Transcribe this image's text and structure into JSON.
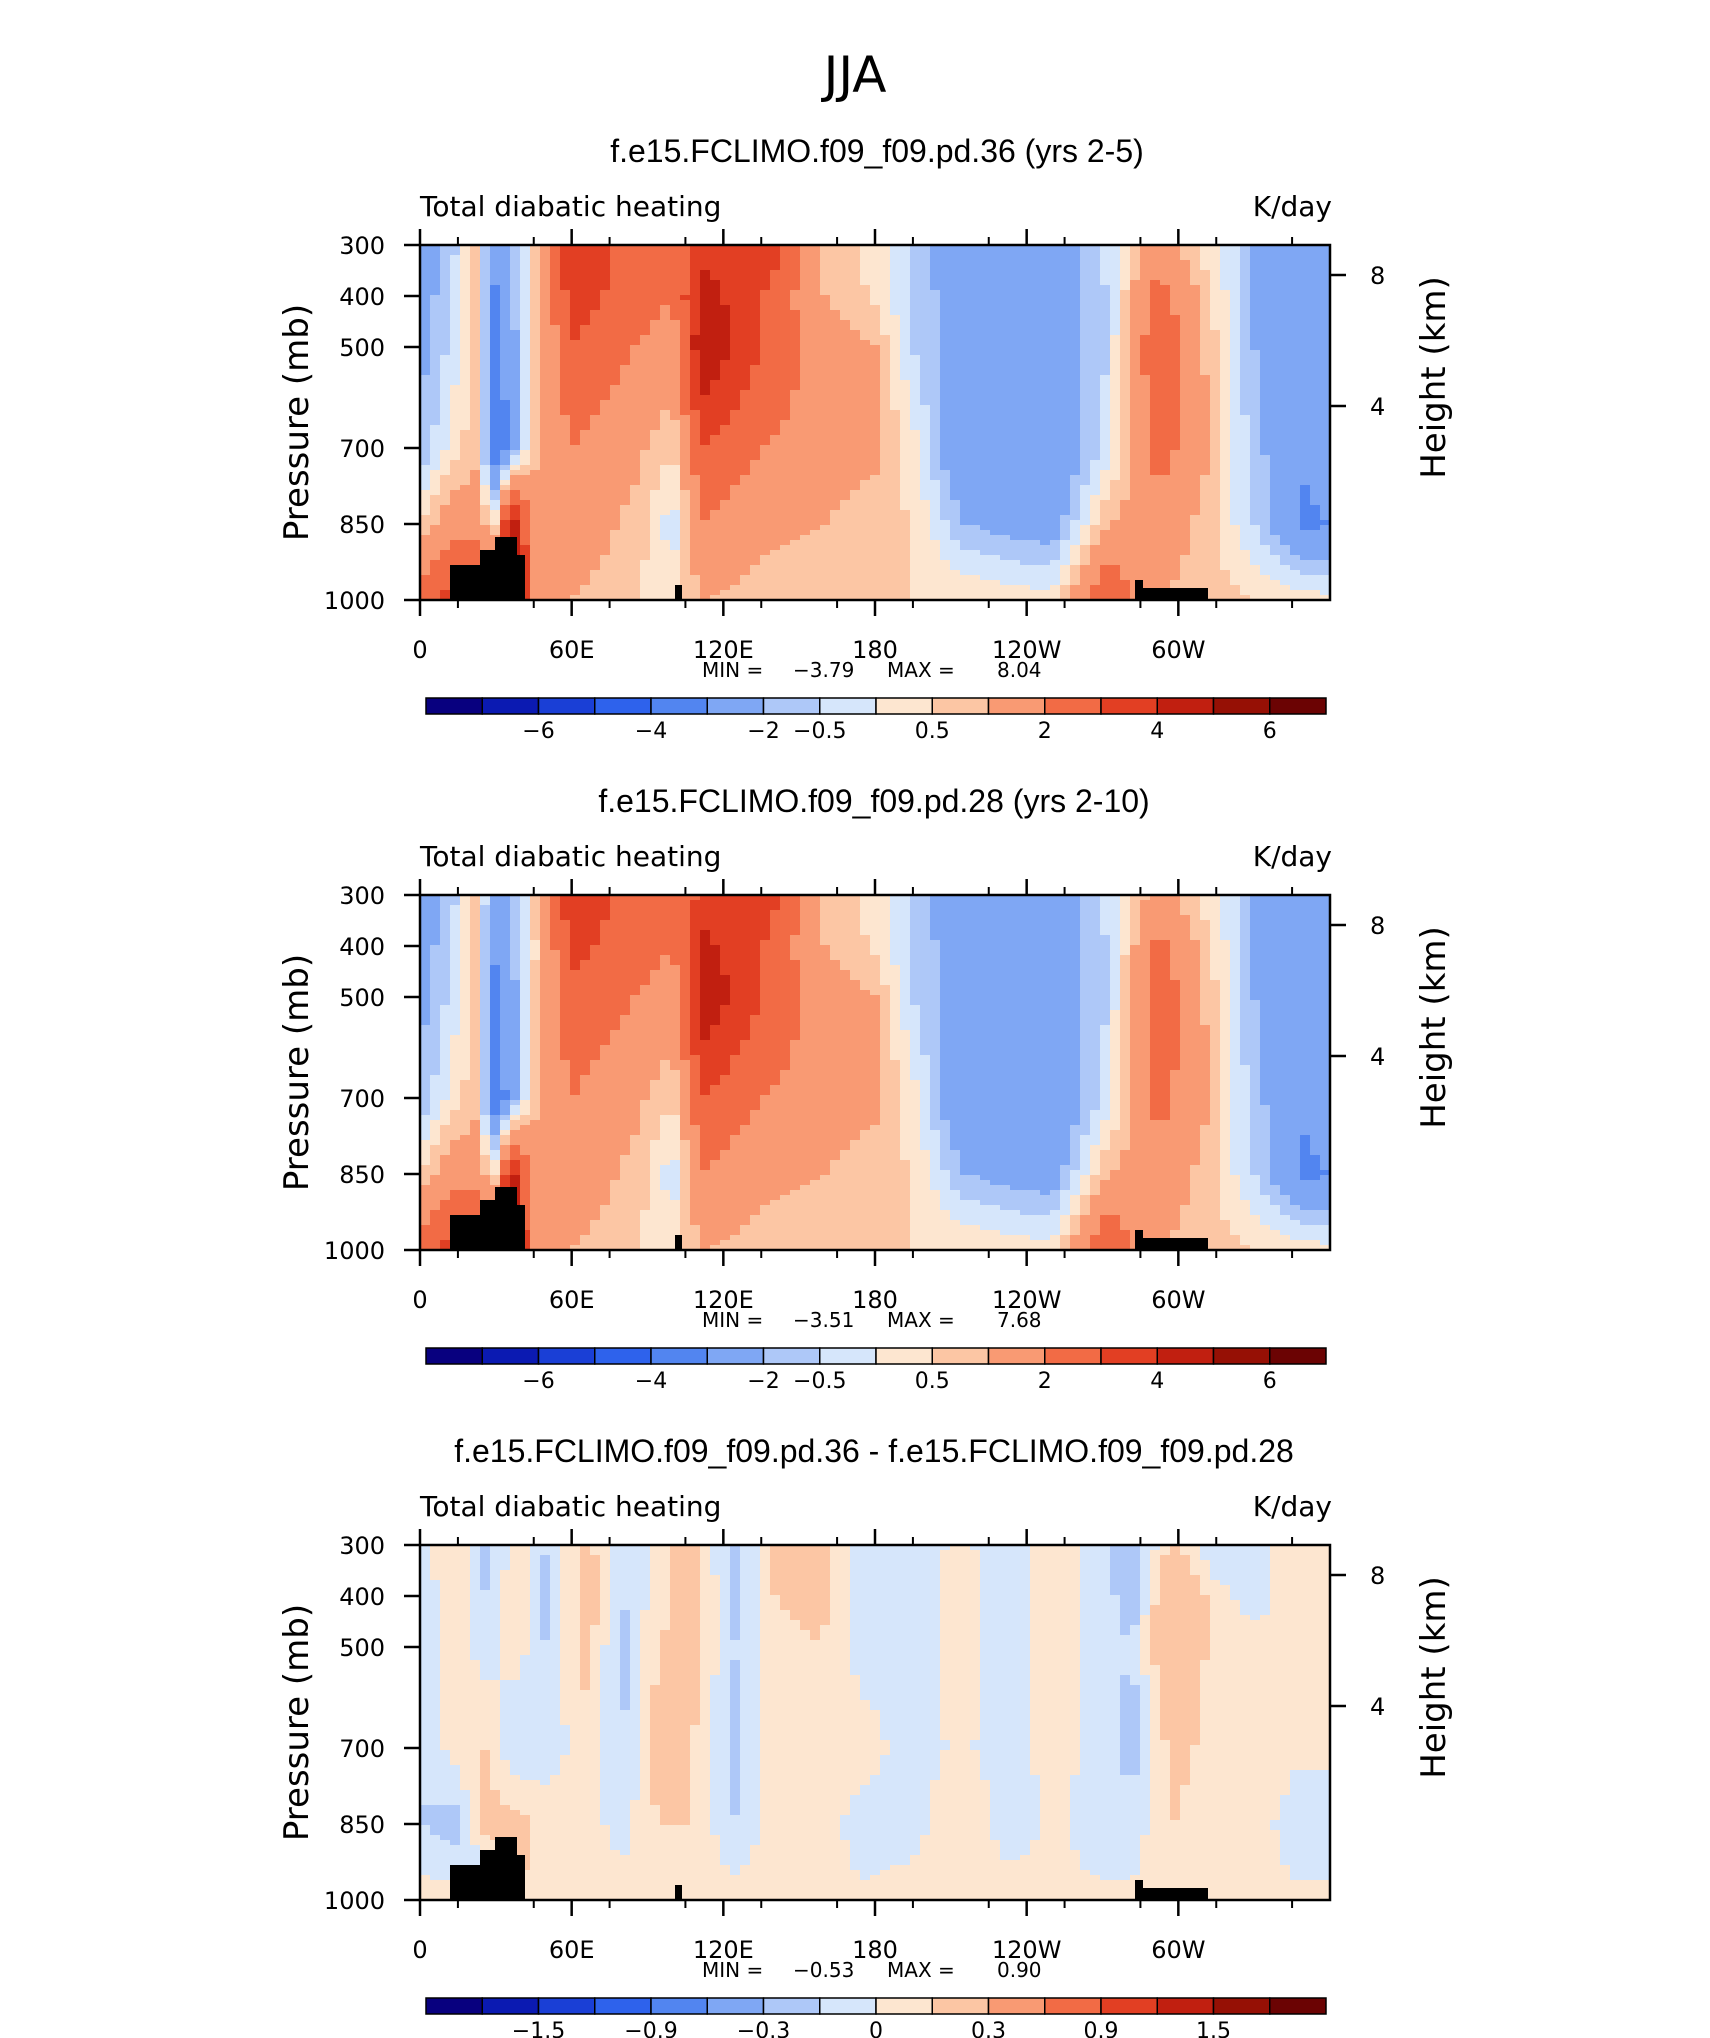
{
  "figure_title": "JJA",
  "colors": {
    "scale": [
      "#08007f",
      "#0b1ab2",
      "#1a3fd6",
      "#2e62ec",
      "#5285f0",
      "#7fa7f4",
      "#aec8f8",
      "#d6e6fb",
      "#fde6d0",
      "#fcc6a4",
      "#f99a73",
      "#f26b45",
      "#e23f23",
      "#c11f10",
      "#961005",
      "#6b0303"
    ],
    "land": "#000000"
  },
  "panels": [
    {
      "title": "f.e15.FCLIMO.f09_f09.pd.36 (yrs 2-5)",
      "left_label": "Total diabatic heating",
      "right_label": "K/day",
      "stats": {
        "min_label": "MIN =",
        "min": "−3.79",
        "max_label": "MAX =",
        "max": "8.04"
      },
      "colorbar_ticks": [
        "−6",
        "−4",
        "−2",
        "−0.5",
        "0.5",
        "2",
        "4",
        "6"
      ]
    },
    {
      "title": "f.e15.FCLIMO.f09_f09.pd.28 (yrs 2-10)",
      "left_label": "Total diabatic heating",
      "right_label": "K/day",
      "stats": {
        "min_label": "MIN =",
        "min": "−3.51",
        "max_label": "MAX =",
        "max": "7.68"
      },
      "colorbar_ticks": [
        "−6",
        "−4",
        "−2",
        "−0.5",
        "0.5",
        "2",
        "4",
        "6"
      ]
    },
    {
      "title": "f.e15.FCLIMO.f09_f09.pd.36 - f.e15.FCLIMO.f09_f09.pd.28",
      "left_label": "Total diabatic heating",
      "right_label": "K/day",
      "stats": {
        "min_label": "MIN =",
        "min": "−0.53",
        "max_label": "MAX =",
        "max": "0.90"
      },
      "colorbar_ticks": [
        "−1.5",
        "−0.9",
        "−0.3",
        "0",
        "0.3",
        "0.9",
        "1.5"
      ]
    }
  ],
  "chart_data": [
    {
      "type": "heatmap",
      "title": "f.e15.FCLIMO.f09_f09.pd.36 (yrs 2-5)",
      "variable": "Total diabatic heating",
      "units": "K/day",
      "xlabel": "",
      "ylabel": "Pressure (mb)",
      "ylabel_right": "Height (km)",
      "x_ticks": [
        "0",
        "60E",
        "120E",
        "180",
        "120W",
        "60W"
      ],
      "y_ticks": [
        "300",
        "400",
        "500",
        "700",
        "850",
        "1000"
      ],
      "y2_ticks": [
        "8",
        "4"
      ],
      "min": -3.79,
      "max": 8.04,
      "contour_levels": [
        -6,
        -5,
        -4,
        -3,
        -2,
        -1,
        -0.5,
        0,
        0.5,
        1,
        2,
        3,
        4,
        5,
        6
      ],
      "bands": [
        {
          "lon": 0,
          "v": [
            -1.5,
            -1.5,
            -1.2,
            -1,
            0.5,
            2.5
          ]
        },
        {
          "lon": 12,
          "v": [
            -0.8,
            -0.5,
            -0.4,
            0.2,
            1.5,
            3.5
          ]
        },
        {
          "lon": 22,
          "v": [
            0.6,
            0.6,
            0.8,
            0.8,
            1.5,
            4
          ]
        },
        {
          "lon": 30,
          "v": [
            -1.8,
            -2.2,
            -2.5,
            -3,
            0.5,
            4
          ]
        },
        {
          "lon": 36,
          "v": [
            -0.8,
            -1,
            -1.5,
            -1.5,
            5,
            6
          ]
        },
        {
          "lon": 44,
          "v": [
            0.3,
            0.2,
            0.3,
            0.5,
            2,
            2
          ]
        },
        {
          "lon": 60,
          "v": [
            4,
            3.5,
            3,
            2,
            1.5,
            1
          ]
        },
        {
          "lon": 85,
          "v": [
            2.5,
            2.5,
            2,
            1.2,
            0.8,
            0.6
          ]
        },
        {
          "lon": 100,
          "v": [
            2,
            2,
            1.5,
            0.5,
            -0.3,
            0.2
          ]
        },
        {
          "lon": 112,
          "v": [
            3.5,
            4.5,
            5,
            3,
            2,
            1
          ]
        },
        {
          "lon": 135,
          "v": [
            4,
            3,
            3,
            2,
            1.2,
            0.7
          ]
        },
        {
          "lon": 160,
          "v": [
            1,
            1,
            1.5,
            1.5,
            1,
            0.6
          ]
        },
        {
          "lon": 180,
          "v": [
            0.3,
            0.4,
            1,
            1.2,
            0.6,
            0.5
          ]
        },
        {
          "lon": 195,
          "v": [
            -0.7,
            -0.6,
            -0.5,
            0.2,
            0.5,
            0.5
          ]
        },
        {
          "lon": 215,
          "v": [
            -1.5,
            -1.5,
            -1.5,
            -2,
            -1,
            0.5
          ]
        },
        {
          "lon": 250,
          "v": [
            -1.5,
            -1.5,
            -1.5,
            -2,
            -1.5,
            0.2
          ]
        },
        {
          "lon": 272,
          "v": [
            -0.3,
            -0.5,
            -0.5,
            -0.3,
            1,
            3
          ]
        },
        {
          "lon": 292,
          "v": [
            1.5,
            2.5,
            3,
            2.5,
            1.5,
            1
          ]
        },
        {
          "lon": 310,
          "v": [
            0.3,
            0.8,
            1,
            1.2,
            0.8,
            0.8
          ]
        },
        {
          "lon": 330,
          "v": [
            -1,
            -1,
            -1,
            -0.8,
            -0.5,
            0.5
          ]
        },
        {
          "lon": 350,
          "v": [
            -1.5,
            -1.5,
            -1.5,
            -1.8,
            -2.2,
            0.3
          ]
        },
        {
          "lon": 360,
          "v": [
            -1.5,
            -1.5,
            -1.5,
            -1.5,
            -2,
            0.2
          ]
        }
      ]
    },
    {
      "type": "heatmap",
      "title": "f.e15.FCLIMO.f09_f09.pd.28 (yrs 2-10)",
      "variable": "Total diabatic heating",
      "units": "K/day",
      "xlabel": "",
      "ylabel": "Pressure (mb)",
      "ylabel_right": "Height (km)",
      "x_ticks": [
        "0",
        "60E",
        "120E",
        "180",
        "120W",
        "60W"
      ],
      "y_ticks": [
        "300",
        "400",
        "500",
        "700",
        "850",
        "1000"
      ],
      "y2_ticks": [
        "8",
        "4"
      ],
      "min": -3.51,
      "max": 7.68,
      "contour_levels": [
        -6,
        -5,
        -4,
        -3,
        -2,
        -1,
        -0.5,
        0,
        0.5,
        1,
        2,
        3,
        4,
        5,
        6
      ],
      "bands": [
        {
          "lon": 0,
          "v": [
            -1.5,
            -1.5,
            -1.2,
            -1,
            0.5,
            2.5
          ]
        },
        {
          "lon": 12,
          "v": [
            -0.8,
            -0.5,
            -0.4,
            0.2,
            1.5,
            3.5
          ]
        },
        {
          "lon": 22,
          "v": [
            0.6,
            0.6,
            0.8,
            0.8,
            1.5,
            4
          ]
        },
        {
          "lon": 30,
          "v": [
            -1.7,
            -2,
            -2.3,
            -2.8,
            0.5,
            4
          ]
        },
        {
          "lon": 36,
          "v": [
            -0.8,
            -1,
            -1.5,
            -1.5,
            4.5,
            5.5
          ]
        },
        {
          "lon": 44,
          "v": [
            0.3,
            0.2,
            0.3,
            0.5,
            2,
            2
          ]
        },
        {
          "lon": 60,
          "v": [
            3.8,
            3.3,
            2.8,
            2,
            1.5,
            1
          ]
        },
        {
          "lon": 85,
          "v": [
            2.5,
            2.5,
            2,
            1.2,
            0.8,
            0.6
          ]
        },
        {
          "lon": 100,
          "v": [
            2,
            2,
            1.5,
            0.5,
            -0.3,
            0.2
          ]
        },
        {
          "lon": 112,
          "v": [
            3.3,
            4.3,
            4.8,
            3,
            2,
            1
          ]
        },
        {
          "lon": 135,
          "v": [
            3.8,
            3,
            3,
            2,
            1.2,
            0.7
          ]
        },
        {
          "lon": 160,
          "v": [
            1,
            1,
            1.5,
            1.5,
            1,
            0.6
          ]
        },
        {
          "lon": 180,
          "v": [
            0.3,
            0.4,
            1,
            1.2,
            0.6,
            0.5
          ]
        },
        {
          "lon": 195,
          "v": [
            -0.7,
            -0.6,
            -0.5,
            0.2,
            0.5,
            0.5
          ]
        },
        {
          "lon": 215,
          "v": [
            -1.5,
            -1.5,
            -1.5,
            -2,
            -1,
            0.5
          ]
        },
        {
          "lon": 250,
          "v": [
            -1.5,
            -1.5,
            -1.5,
            -2,
            -1.5,
            0.2
          ]
        },
        {
          "lon": 272,
          "v": [
            -0.3,
            -0.5,
            -0.5,
            -0.3,
            1,
            3
          ]
        },
        {
          "lon": 292,
          "v": [
            1.4,
            2.3,
            2.8,
            2.4,
            1.5,
            1
          ]
        },
        {
          "lon": 310,
          "v": [
            0.3,
            0.8,
            1,
            1.2,
            0.8,
            0.8
          ]
        },
        {
          "lon": 330,
          "v": [
            -1,
            -1,
            -1,
            -0.8,
            -0.5,
            0.5
          ]
        },
        {
          "lon": 350,
          "v": [
            -1.5,
            -1.5,
            -1.5,
            -1.8,
            -2.2,
            0.3
          ]
        },
        {
          "lon": 360,
          "v": [
            -1.5,
            -1.5,
            -1.5,
            -1.5,
            -2,
            0.2
          ]
        }
      ]
    },
    {
      "type": "heatmap",
      "title": "f.e15.FCLIMO.f09_f09.pd.36 - f.e15.FCLIMO.f09_f09.pd.28",
      "variable": "Total diabatic heating",
      "units": "K/day",
      "xlabel": "",
      "ylabel": "Pressure (mb)",
      "ylabel_right": "Height (km)",
      "x_ticks": [
        "0",
        "60E",
        "120E",
        "180",
        "120W",
        "60W"
      ],
      "y_ticks": [
        "300",
        "400",
        "500",
        "700",
        "850",
        "1000"
      ],
      "y2_ticks": [
        "8",
        "4"
      ],
      "min": -0.53,
      "max": 0.9,
      "contour_levels": [
        -1.5,
        -1.2,
        -0.9,
        -0.6,
        -0.3,
        -0.1,
        0,
        0.1,
        0.3,
        0.6,
        0.9,
        1.2,
        1.5
      ],
      "bands": [
        {
          "lon": 0,
          "v": [
            -0.05,
            -0.05,
            -0.1,
            -0.1,
            -0.1,
            0.05
          ]
        },
        {
          "lon": 14,
          "v": [
            0.1,
            0.05,
            0.05,
            0.05,
            -0.15,
            0.05
          ]
        },
        {
          "lon": 26,
          "v": [
            -0.15,
            -0.1,
            -0.05,
            0.1,
            0.15,
            -0.2
          ]
        },
        {
          "lon": 38,
          "v": [
            0.05,
            0.1,
            0.05,
            -0.1,
            0.15,
            0.1
          ]
        },
        {
          "lon": 50,
          "v": [
            -0.1,
            -0.15,
            -0.1,
            -0.05,
            0.05,
            0.05
          ]
        },
        {
          "lon": 66,
          "v": [
            0.15,
            0.2,
            0.15,
            0.05,
            0.05,
            0.05
          ]
        },
        {
          "lon": 80,
          "v": [
            -0.1,
            -0.1,
            -0.15,
            -0.1,
            -0.05,
            0.05
          ]
        },
        {
          "lon": 94,
          "v": [
            0.05,
            0.05,
            0.1,
            0.15,
            0.1,
            0.05
          ]
        },
        {
          "lon": 108,
          "v": [
            0.15,
            0.2,
            0.15,
            0.1,
            0.1,
            0.05
          ]
        },
        {
          "lon": 124,
          "v": [
            -0.15,
            -0.15,
            -0.1,
            -0.15,
            -0.1,
            0.05
          ]
        },
        {
          "lon": 140,
          "v": [
            0.1,
            0.1,
            0.05,
            0.1,
            0.05,
            0.05
          ]
        },
        {
          "lon": 158,
          "v": [
            0.15,
            0.15,
            0.1,
            0.05,
            0.05,
            0.02
          ]
        },
        {
          "lon": 176,
          "v": [
            -0.05,
            -0.05,
            -0.05,
            0.05,
            -0.05,
            0.02
          ]
        },
        {
          "lon": 194,
          "v": [
            -0.05,
            -0.05,
            -0.05,
            -0.05,
            -0.05,
            0.05
          ]
        },
        {
          "lon": 214,
          "v": [
            0.02,
            0.05,
            0.05,
            0.02,
            0.1,
            0.05
          ]
        },
        {
          "lon": 232,
          "v": [
            -0.05,
            -0.05,
            -0.05,
            -0.05,
            -0.05,
            0.05
          ]
        },
        {
          "lon": 252,
          "v": [
            0.05,
            0.05,
            0.05,
            0.05,
            0.02,
            0.02
          ]
        },
        {
          "lon": 268,
          "v": [
            -0.05,
            -0.05,
            -0.05,
            -0.05,
            -0.05,
            0.02
          ]
        },
        {
          "lon": 282,
          "v": [
            -0.2,
            -0.15,
            -0.1,
            -0.15,
            -0.05,
            0.02
          ]
        },
        {
          "lon": 298,
          "v": [
            0.15,
            0.3,
            0.3,
            0.15,
            0.1,
            0.05
          ]
        },
        {
          "lon": 314,
          "v": [
            -0.1,
            0.05,
            0.05,
            0.05,
            0.02,
            0.02
          ]
        },
        {
          "lon": 330,
          "v": [
            -0.05,
            -0.05,
            0.05,
            0.1,
            0.05,
            0.02
          ]
        },
        {
          "lon": 346,
          "v": [
            0.05,
            0.05,
            0.02,
            0.02,
            -0.05,
            0.02
          ]
        },
        {
          "lon": 360,
          "v": [
            0.05,
            0.05,
            0.05,
            0.02,
            -0.05,
            0.02
          ]
        }
      ]
    }
  ]
}
